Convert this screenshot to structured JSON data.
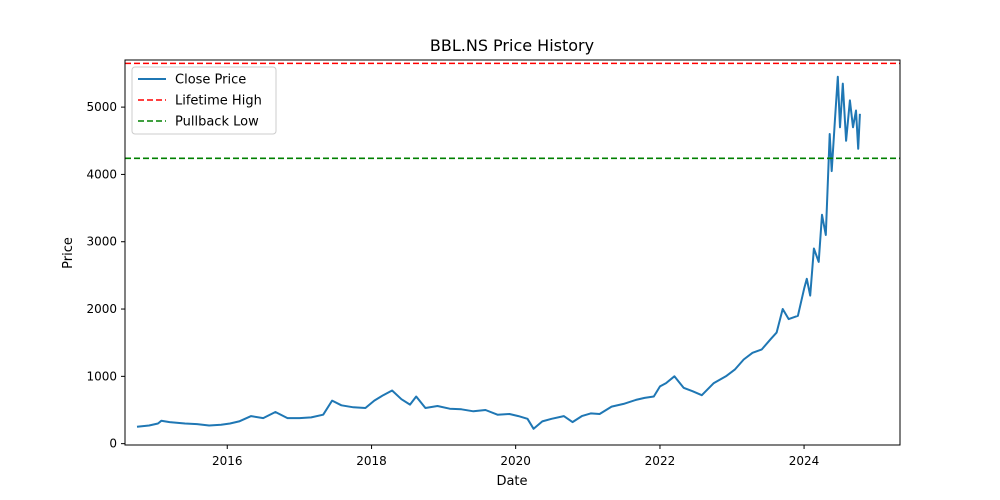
{
  "chart_data": {
    "type": "line",
    "title": "BBL.NS Price History",
    "xlabel": "Date",
    "ylabel": "Price",
    "xlim": [
      "2014-08-01",
      "2025-05-01"
    ],
    "ylim": [
      -20,
      5700
    ],
    "x_ticks": [
      "2016",
      "2018",
      "2020",
      "2022",
      "2024"
    ],
    "y_ticks": [
      0,
      1000,
      2000,
      3000,
      4000,
      5000
    ],
    "grid": false,
    "legend_position": "upper-left",
    "series": [
      {
        "name": "Close Price",
        "kind": "line",
        "color": "#1f77b4",
        "points": [
          [
            "2014-10-01",
            250
          ],
          [
            "2014-12-01",
            270
          ],
          [
            "2015-01-15",
            300
          ],
          [
            "2015-02-01",
            340
          ],
          [
            "2015-03-15",
            320
          ],
          [
            "2015-06-01",
            300
          ],
          [
            "2015-08-01",
            290
          ],
          [
            "2015-10-01",
            270
          ],
          [
            "2015-12-01",
            280
          ],
          [
            "2016-01-15",
            300
          ],
          [
            "2016-03-01",
            330
          ],
          [
            "2016-05-01",
            410
          ],
          [
            "2016-07-01",
            380
          ],
          [
            "2016-09-01",
            470
          ],
          [
            "2016-11-01",
            380
          ],
          [
            "2017-01-01",
            380
          ],
          [
            "2017-03-01",
            390
          ],
          [
            "2017-05-01",
            430
          ],
          [
            "2017-06-15",
            640
          ],
          [
            "2017-08-01",
            570
          ],
          [
            "2017-10-01",
            540
          ],
          [
            "2017-12-01",
            530
          ],
          [
            "2018-01-15",
            640
          ],
          [
            "2018-03-01",
            720
          ],
          [
            "2018-04-15",
            790
          ],
          [
            "2018-06-01",
            660
          ],
          [
            "2018-07-15",
            580
          ],
          [
            "2018-08-15",
            700
          ],
          [
            "2018-10-01",
            530
          ],
          [
            "2018-12-01",
            560
          ],
          [
            "2019-02-01",
            520
          ],
          [
            "2019-04-01",
            510
          ],
          [
            "2019-06-01",
            480
          ],
          [
            "2019-08-01",
            500
          ],
          [
            "2019-10-01",
            430
          ],
          [
            "2019-12-01",
            440
          ],
          [
            "2020-01-15",
            410
          ],
          [
            "2020-03-01",
            370
          ],
          [
            "2020-04-01",
            220
          ],
          [
            "2020-05-15",
            330
          ],
          [
            "2020-07-01",
            370
          ],
          [
            "2020-09-01",
            410
          ],
          [
            "2020-10-15",
            320
          ],
          [
            "2020-12-01",
            410
          ],
          [
            "2021-01-15",
            450
          ],
          [
            "2021-03-01",
            440
          ],
          [
            "2021-05-01",
            550
          ],
          [
            "2021-07-01",
            590
          ],
          [
            "2021-09-01",
            650
          ],
          [
            "2021-10-15",
            680
          ],
          [
            "2021-12-01",
            700
          ],
          [
            "2022-01-01",
            850
          ],
          [
            "2022-02-01",
            900
          ],
          [
            "2022-03-15",
            1000
          ],
          [
            "2022-05-01",
            830
          ],
          [
            "2022-06-15",
            780
          ],
          [
            "2022-08-01",
            720
          ],
          [
            "2022-10-01",
            900
          ],
          [
            "2022-12-01",
            1000
          ],
          [
            "2023-01-15",
            1100
          ],
          [
            "2023-03-01",
            1250
          ],
          [
            "2023-04-15",
            1350
          ],
          [
            "2023-06-01",
            1400
          ],
          [
            "2023-07-15",
            1550
          ],
          [
            "2023-08-15",
            1650
          ],
          [
            "2023-09-15",
            2000
          ],
          [
            "2023-10-15",
            1850
          ],
          [
            "2023-12-01",
            1900
          ],
          [
            "2024-01-01",
            2300
          ],
          [
            "2024-01-15",
            2450
          ],
          [
            "2024-02-01",
            2200
          ],
          [
            "2024-02-20",
            2900
          ],
          [
            "2024-03-15",
            2700
          ],
          [
            "2024-04-01",
            3400
          ],
          [
            "2024-04-20",
            3100
          ],
          [
            "2024-05-10",
            4600
          ],
          [
            "2024-05-20",
            4050
          ],
          [
            "2024-06-05",
            4800
          ],
          [
            "2024-06-20",
            5450
          ],
          [
            "2024-07-01",
            4700
          ],
          [
            "2024-07-15",
            5350
          ],
          [
            "2024-08-01",
            4500
          ],
          [
            "2024-08-20",
            5100
          ],
          [
            "2024-09-05",
            4700
          ],
          [
            "2024-09-20",
            4950
          ],
          [
            "2024-10-01",
            4380
          ],
          [
            "2024-10-10",
            4900
          ]
        ]
      },
      {
        "name": "Lifetime High",
        "kind": "hline",
        "value": 5650,
        "color": "#ff0000"
      },
      {
        "name": "Pullback Low",
        "kind": "hline",
        "value": 4240,
        "color": "#008000"
      }
    ]
  }
}
